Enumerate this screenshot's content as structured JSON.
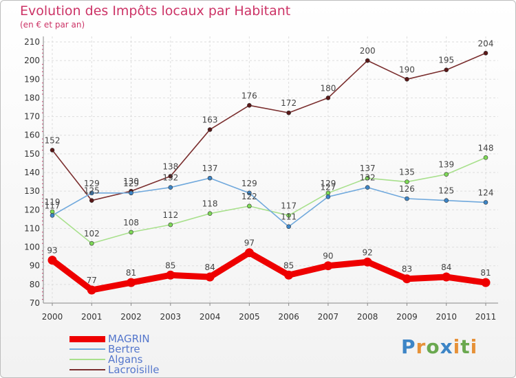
{
  "header": {
    "title": "Evolution des Impôts locaux par Habitant",
    "subtitle": "(en € et par an)"
  },
  "chart_data": {
    "type": "line",
    "x": [
      "2000",
      "2001",
      "2002",
      "2003",
      "2004",
      "2005",
      "2006",
      "2007",
      "2008",
      "2009",
      "2010",
      "2011"
    ],
    "ylim": [
      70,
      210
    ],
    "yticks": [
      70,
      80,
      90,
      100,
      110,
      120,
      130,
      140,
      150,
      160,
      170,
      180,
      190,
      200,
      210
    ],
    "grid": true,
    "legend": "bottom-left",
    "series": [
      {
        "name": "MAGRIN",
        "values": [
          93,
          77,
          81,
          85,
          84,
          97,
          85,
          90,
          92,
          83,
          84,
          81
        ],
        "color": "#ee0000",
        "marker": "#ee0000"
      },
      {
        "name": "Bertre",
        "values": [
          117,
          129,
          129,
          132,
          137,
          129,
          111,
          127,
          132,
          126,
          125,
          124
        ],
        "color": "#6fa8dc",
        "marker": "#3d85c6"
      },
      {
        "name": "Algans",
        "values": [
          119,
          102,
          108,
          112,
          118,
          122,
          117,
          129,
          137,
          135,
          139,
          148
        ],
        "color": "#a8e08c",
        "marker": "#7ed957"
      },
      {
        "name": "Lacroisille",
        "values": [
          152,
          125,
          130,
          138,
          163,
          176,
          172,
          180,
          200,
          190,
          195,
          204
        ],
        "color": "#7a2e2e",
        "marker": "#5a1818"
      }
    ]
  },
  "logo": {
    "letters": [
      "P",
      "r",
      "o",
      "x",
      "i",
      "t",
      "i"
    ],
    "colors": [
      "#3d85c6",
      "#e69138",
      "#6aa84f",
      "#3d85c6",
      "#e69138",
      "#6aa84f",
      "#e69138"
    ]
  }
}
